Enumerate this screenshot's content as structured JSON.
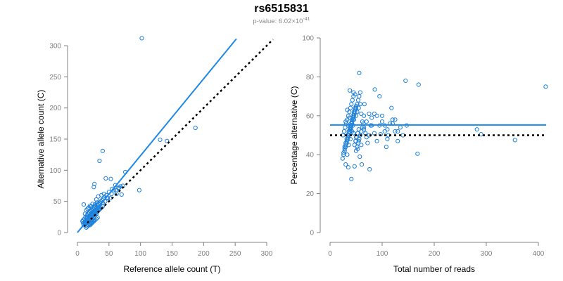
{
  "header": {
    "title": "rs6515831",
    "pvalue_prefix": "p-value: 6.02×10",
    "pvalue_exp": "-41"
  },
  "colors": {
    "points": "#1f80d8",
    "fit_line": "#1e88e5",
    "reference_line": "#000000"
  },
  "chart_data": [
    {
      "type": "scatter",
      "name": "allele-counts",
      "xlabel": "Reference allele count (T)",
      "ylabel": "Alternative allele count (C)",
      "xlim": [
        0,
        300
      ],
      "ylim": [
        0,
        300
      ],
      "xticks": [
        0,
        50,
        100,
        150,
        200,
        250,
        300
      ],
      "yticks": [
        0,
        50,
        100,
        150,
        200,
        250,
        300
      ],
      "fit_line": {
        "x": [
          0,
          252
        ],
        "y": [
          0,
          311
        ]
      },
      "reference_line": {
        "x": [
          10,
          310
        ],
        "y": [
          10,
          310
        ]
      },
      "x": [
        102,
        40,
        187,
        35,
        131,
        142,
        26,
        76,
        98,
        27,
        45,
        53,
        60,
        68,
        72,
        50,
        55,
        65,
        48,
        58,
        42,
        38,
        33,
        30,
        62,
        70,
        52,
        46,
        44,
        36,
        31,
        28,
        24,
        22,
        20,
        18,
        16,
        14,
        12,
        10,
        9,
        11,
        13,
        15,
        17,
        19,
        21,
        23,
        25,
        26,
        28,
        30,
        32,
        34,
        12,
        14,
        16,
        18,
        20,
        22,
        24,
        26,
        15,
        17,
        19,
        21,
        23,
        13,
        15,
        17,
        19,
        21,
        23,
        25,
        27,
        29,
        31,
        33,
        35,
        37,
        39,
        41,
        43,
        20,
        22,
        24,
        26,
        28,
        30,
        32,
        18,
        20,
        22,
        24,
        26,
        28,
        14,
        16,
        18,
        20,
        22,
        24,
        26,
        10,
        12,
        14,
        16,
        18,
        20,
        22,
        24,
        26,
        28,
        30,
        32,
        34,
        36,
        38,
        40,
        11,
        13,
        17,
        19,
        21,
        25,
        27,
        29,
        9,
        15,
        23,
        31,
        35,
        8,
        16,
        24,
        32,
        40,
        47,
        54,
        61,
        66
      ],
      "y": [
        312,
        131,
        168,
        115,
        149,
        147,
        73,
        97,
        68,
        78,
        87,
        86,
        76,
        74,
        75,
        65,
        70,
        71,
        55,
        68,
        62,
        60,
        58,
        53,
        62,
        61,
        55,
        60,
        50,
        47,
        48,
        45,
        46,
        42,
        43,
        40,
        38,
        36,
        30,
        45,
        20,
        22,
        25,
        28,
        30,
        32,
        34,
        36,
        38,
        40,
        42,
        30,
        35,
        38,
        15,
        18,
        20,
        22,
        24,
        26,
        28,
        30,
        10,
        12,
        14,
        16,
        18,
        25,
        28,
        30,
        32,
        34,
        36,
        38,
        40,
        42,
        44,
        46,
        48,
        50,
        52,
        54,
        56,
        12,
        14,
        16,
        18,
        20,
        22,
        24,
        26,
        28,
        30,
        32,
        34,
        36,
        8,
        10,
        12,
        14,
        16,
        18,
        20,
        12,
        14,
        16,
        18,
        20,
        22,
        24,
        26,
        28,
        30,
        32,
        34,
        36,
        38,
        40,
        42,
        16,
        18,
        20,
        22,
        24,
        28,
        30,
        32,
        15,
        22,
        26,
        36,
        40,
        18,
        24,
        33,
        44,
        48,
        56,
        62,
        68,
        72
      ]
    },
    {
      "type": "scatter",
      "name": "percentage-alternative",
      "xlabel": "Total number of reads",
      "ylabel": "Percentage alternative (C)",
      "xlim": [
        0,
        400
      ],
      "ylim": [
        0,
        100
      ],
      "xticks": [
        0,
        100,
        200,
        300,
        400
      ],
      "yticks": [
        0,
        20,
        40,
        60,
        80,
        100
      ],
      "fit_line": {
        "x": [
          0,
          415
        ],
        "y": [
          55.3,
          55.3
        ]
      },
      "reference_line": {
        "x": [
          0,
          415
        ],
        "y": [
          50,
          50
        ]
      },
      "x": [
        414,
        56,
        145,
        170,
        86,
        95,
        118,
        130,
        38,
        45,
        48,
        41,
        66,
        112,
        130,
        168,
        147,
        355,
        290,
        282,
        108,
        97,
        76,
        47,
        35,
        30,
        33,
        36,
        39,
        42,
        44,
        46,
        50,
        52,
        55,
        58,
        60,
        62,
        65,
        68,
        70,
        72,
        75,
        78,
        80,
        85,
        90,
        100,
        105,
        110,
        120,
        125,
        135,
        140,
        25,
        27,
        29,
        31,
        33,
        35,
        37,
        39,
        41,
        43,
        45,
        47,
        49,
        51,
        53,
        55,
        28,
        30,
        32,
        34,
        36,
        38,
        40,
        42,
        44,
        46,
        48,
        50,
        52,
        54,
        56,
        58,
        60,
        62,
        64,
        26,
        28,
        30,
        32,
        34,
        36,
        38,
        40,
        42,
        44,
        46,
        48,
        50,
        24,
        26,
        28,
        30,
        32,
        34,
        36,
        38,
        40,
        42,
        44,
        46,
        48,
        50,
        52,
        54,
        56,
        58,
        30,
        35,
        40,
        45,
        50,
        55,
        60,
        65,
        70,
        75,
        80,
        85,
        90,
        95,
        100,
        105,
        110,
        115,
        120,
        125,
        33,
        37,
        41,
        45,
        49,
        53,
        57,
        61,
        65
      ],
      "y": [
        75,
        82,
        78,
        76,
        73.5,
        70,
        64,
        52,
        73,
        72,
        71,
        27.5,
        66,
        50,
        47,
        40.5,
        55,
        47.5,
        50.5,
        53,
        44,
        50.5,
        32.5,
        34,
        33.5,
        35,
        40,
        45,
        48,
        52,
        55,
        58,
        60,
        62,
        64,
        66,
        61,
        57,
        54,
        51,
        49,
        46,
        50,
        55,
        59,
        61,
        60,
        57,
        55,
        53,
        56,
        58,
        54,
        50,
        50,
        52,
        54,
        56,
        58,
        60,
        62,
        64,
        66,
        68,
        70,
        45,
        47,
        49,
        51,
        53,
        44,
        46,
        48,
        50,
        52,
        54,
        56,
        58,
        60,
        62,
        64,
        42,
        44,
        46,
        48,
        50,
        52,
        54,
        56,
        41,
        43,
        45,
        47,
        49,
        51,
        53,
        55,
        57,
        59,
        61,
        63,
        65,
        38,
        40,
        42,
        44,
        46,
        48,
        50,
        52,
        54,
        56,
        58,
        60,
        62,
        64,
        66,
        68,
        70,
        72,
        57,
        55,
        53,
        51,
        49,
        47,
        45,
        53,
        57,
        61,
        55,
        51,
        47,
        55,
        60,
        52,
        48,
        56,
        58,
        52,
        63,
        59,
        55,
        51,
        47,
        43,
        39,
        35,
        60
      ]
    }
  ]
}
